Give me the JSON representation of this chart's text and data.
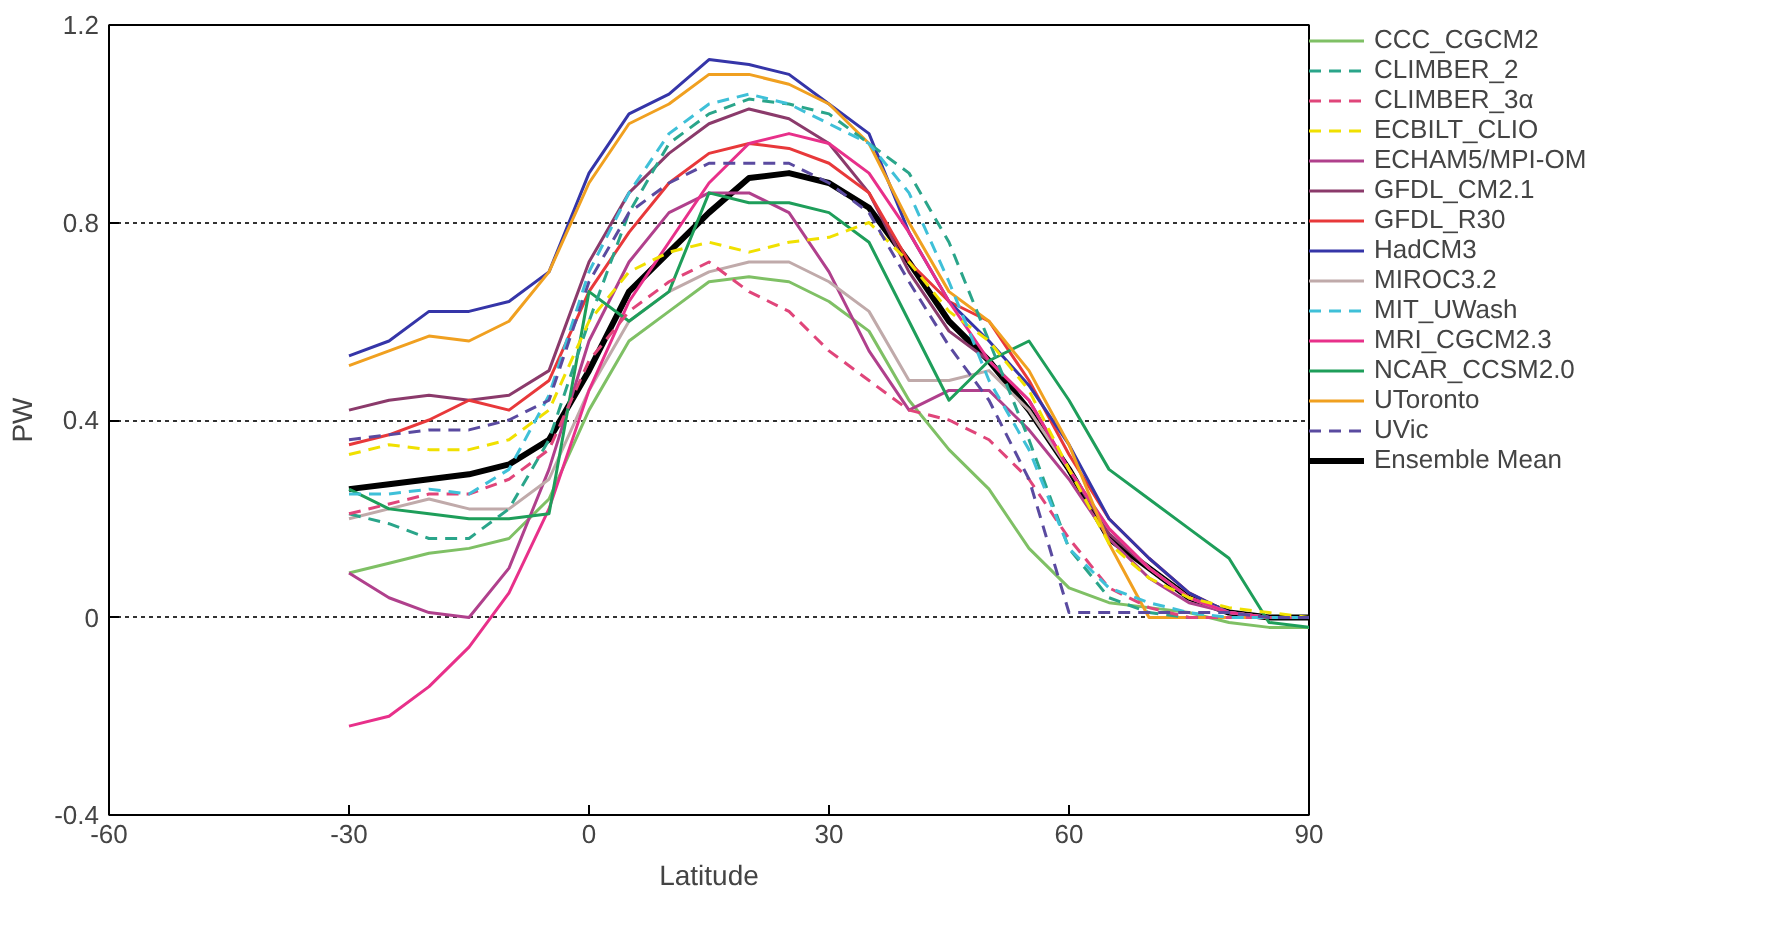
{
  "chart_data": {
    "type": "line",
    "xlabel": "Latitude",
    "ylabel": "PW",
    "xlim": [
      -60,
      90
    ],
    "ylim": [
      -0.4,
      1.2
    ],
    "xticks": [
      -60,
      -30,
      0,
      30,
      60,
      90
    ],
    "yticks": [
      -0.4,
      0,
      0.4,
      0.8,
      1.2
    ],
    "grid": "y",
    "legend": "right",
    "line_style": "solid",
    "marker": "none",
    "x": [
      -30,
      -25,
      -20,
      -15,
      -10,
      -5,
      0,
      5,
      10,
      15,
      20,
      25,
      30,
      35,
      40,
      45,
      50,
      55,
      60,
      65,
      70,
      75,
      80,
      85,
      90
    ],
    "series": [
      {
        "name": "CCC_CGCM2",
        "color": "#7fc065",
        "values": [
          0.09,
          0.11,
          0.13,
          0.14,
          0.16,
          0.24,
          0.42,
          0.56,
          0.62,
          0.68,
          0.69,
          0.68,
          0.64,
          0.58,
          0.44,
          0.34,
          0.26,
          0.14,
          0.06,
          0.03,
          0.02,
          0.01,
          -0.01,
          -0.02,
          -0.02
        ]
      },
      {
        "name": "CLIMBER_2",
        "color": "#2aa58a",
        "line_style": "dashed",
        "values": [
          0.21,
          0.19,
          0.16,
          0.16,
          0.22,
          0.36,
          0.6,
          0.82,
          0.96,
          1.02,
          1.05,
          1.04,
          1.02,
          0.96,
          0.9,
          0.76,
          0.56,
          0.36,
          0.14,
          0.04,
          0.01,
          0.0,
          0.0,
          0.0,
          0.0
        ]
      },
      {
        "name": "CLIMBER_3α",
        "color": "#e0457a",
        "line_style": "dashed",
        "values": [
          0.21,
          0.23,
          0.25,
          0.25,
          0.28,
          0.34,
          0.52,
          0.62,
          0.68,
          0.72,
          0.66,
          0.62,
          0.54,
          0.48,
          0.42,
          0.4,
          0.36,
          0.28,
          0.16,
          0.06,
          0.02,
          0.0,
          0.0,
          0.0,
          0.0
        ]
      },
      {
        "name": "ECBILT_CLIO",
        "color": "#f0e000",
        "line_style": "dashed",
        "values": [
          0.33,
          0.35,
          0.34,
          0.34,
          0.36,
          0.42,
          0.6,
          0.7,
          0.74,
          0.76,
          0.74,
          0.76,
          0.77,
          0.8,
          0.72,
          0.62,
          0.56,
          0.46,
          0.3,
          0.15,
          0.08,
          0.04,
          0.02,
          0.01,
          0.0
        ]
      },
      {
        "name": "ECHAM5/MPI-OM",
        "color": "#b0408c",
        "values": [
          0.09,
          0.04,
          0.01,
          0.0,
          0.1,
          0.3,
          0.56,
          0.72,
          0.82,
          0.86,
          0.86,
          0.82,
          0.7,
          0.54,
          0.42,
          0.46,
          0.46,
          0.38,
          0.28,
          0.16,
          0.08,
          0.03,
          0.01,
          0.0,
          0.0
        ]
      },
      {
        "name": "GFDL_CM2.1",
        "color": "#8b3a6b",
        "values": [
          0.42,
          0.44,
          0.45,
          0.44,
          0.45,
          0.5,
          0.72,
          0.86,
          0.94,
          1.0,
          1.03,
          1.01,
          0.96,
          0.86,
          0.7,
          0.58,
          0.52,
          0.44,
          0.3,
          0.17,
          0.1,
          0.04,
          0.01,
          0.0,
          0.0
        ]
      },
      {
        "name": "GFDL_R30",
        "color": "#e8383a",
        "values": [
          0.35,
          0.37,
          0.4,
          0.44,
          0.42,
          0.48,
          0.66,
          0.78,
          0.88,
          0.94,
          0.96,
          0.95,
          0.92,
          0.86,
          0.72,
          0.64,
          0.6,
          0.48,
          0.33,
          0.2,
          0.12,
          0.05,
          0.01,
          0.0,
          0.0
        ]
      },
      {
        "name": "HadCM3",
        "color": "#3535a8",
        "values": [
          0.53,
          0.56,
          0.62,
          0.62,
          0.64,
          0.7,
          0.9,
          1.02,
          1.06,
          1.13,
          1.12,
          1.1,
          1.04,
          0.98,
          0.78,
          0.64,
          0.56,
          0.47,
          0.35,
          0.2,
          0.12,
          0.05,
          0.01,
          0.0,
          0.0
        ]
      },
      {
        "name": "MIROC3.2",
        "color": "#c0aaaa",
        "values": [
          0.2,
          0.22,
          0.24,
          0.22,
          0.22,
          0.28,
          0.46,
          0.6,
          0.66,
          0.7,
          0.72,
          0.72,
          0.68,
          0.62,
          0.48,
          0.48,
          0.5,
          0.42,
          0.3,
          0.18,
          0.1,
          0.04,
          0.01,
          0.0,
          0.0
        ]
      },
      {
        "name": "MIT_UWash",
        "color": "#3fc0d8",
        "line_style": "dashed",
        "values": [
          0.25,
          0.25,
          0.26,
          0.25,
          0.3,
          0.45,
          0.7,
          0.86,
          0.98,
          1.04,
          1.06,
          1.04,
          1.0,
          0.96,
          0.86,
          0.68,
          0.48,
          0.34,
          0.14,
          0.06,
          0.03,
          0.01,
          0.0,
          0.0,
          0.0
        ]
      },
      {
        "name": "MRI_CGCM2.3",
        "color": "#e8308a",
        "values": [
          -0.22,
          -0.2,
          -0.14,
          -0.06,
          0.05,
          0.22,
          0.46,
          0.64,
          0.76,
          0.88,
          0.96,
          0.98,
          0.96,
          0.9,
          0.78,
          0.64,
          0.52,
          0.44,
          0.3,
          0.18,
          0.1,
          0.04,
          0.01,
          0.0,
          0.0
        ]
      },
      {
        "name": "NCAR_CCSM2.0",
        "color": "#1e9e5a",
        "values": [
          0.26,
          0.22,
          0.21,
          0.2,
          0.2,
          0.21,
          0.66,
          0.6,
          0.66,
          0.86,
          0.84,
          0.84,
          0.82,
          0.76,
          0.6,
          0.44,
          0.52,
          0.56,
          0.44,
          0.3,
          0.24,
          0.18,
          0.12,
          -0.01,
          -0.02
        ]
      },
      {
        "name": "UToronto",
        "color": "#f0a020",
        "values": [
          0.51,
          0.54,
          0.57,
          0.56,
          0.6,
          0.7,
          0.88,
          1.0,
          1.04,
          1.1,
          1.1,
          1.08,
          1.04,
          0.96,
          0.8,
          0.66,
          0.6,
          0.5,
          0.35,
          0.15,
          0.0,
          0.0,
          0.0,
          0.0,
          0.0
        ]
      },
      {
        "name": "UVic",
        "color": "#5a4aa0",
        "line_style": "dashed",
        "values": [
          0.36,
          0.37,
          0.38,
          0.38,
          0.4,
          0.44,
          0.68,
          0.82,
          0.88,
          0.92,
          0.92,
          0.92,
          0.88,
          0.82,
          0.68,
          0.55,
          0.44,
          0.28,
          0.01,
          0.01,
          0.01,
          0.01,
          0.01,
          0.0,
          0.0
        ]
      },
      {
        "name": "Ensemble Mean",
        "color": "#000000",
        "values": [
          0.26,
          0.27,
          0.28,
          0.29,
          0.31,
          0.36,
          0.5,
          0.66,
          0.74,
          0.82,
          0.89,
          0.9,
          0.88,
          0.83,
          0.72,
          0.6,
          0.52,
          0.42,
          0.3,
          0.16,
          0.1,
          0.04,
          0.01,
          0.0,
          0.0
        ]
      }
    ]
  }
}
